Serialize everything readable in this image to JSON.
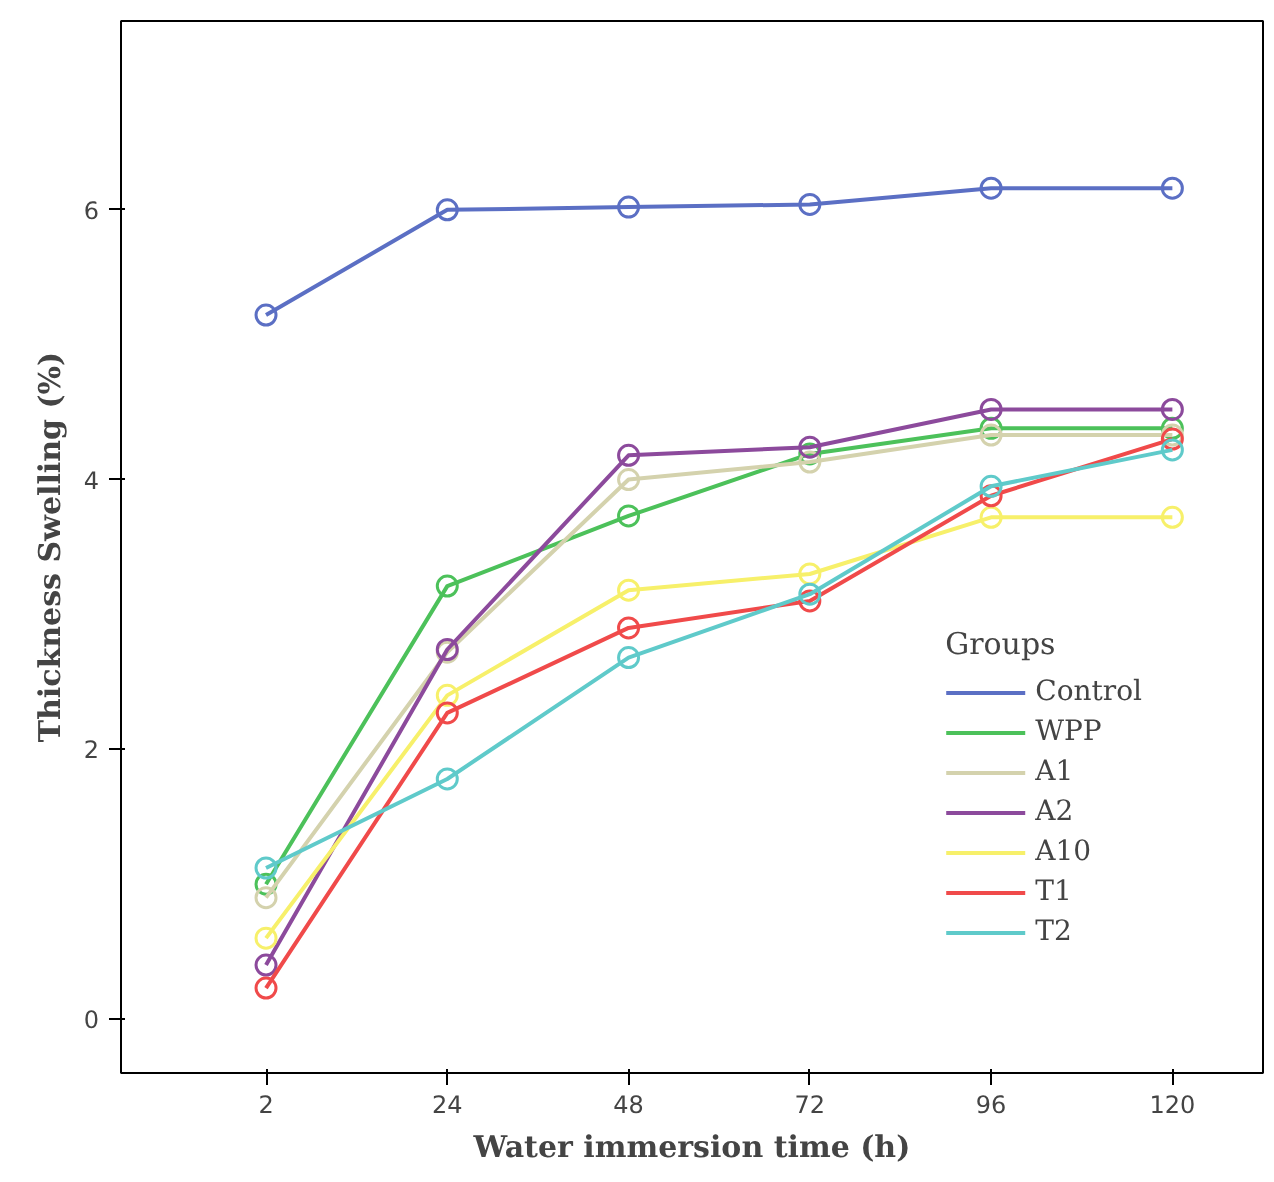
{
  "chart_data": {
    "type": "line",
    "xlabel": "Water immersion time (h)",
    "ylabel": "Thickness Swelling (%)",
    "legend_title": "Groups",
    "categories": [
      "2",
      "24",
      "48",
      "72",
      "96",
      "120"
    ],
    "ylim": [
      -0.4,
      7.4
    ],
    "yticks": [
      0,
      2,
      4,
      6
    ],
    "grid": false,
    "legend": "right",
    "marker": "circle",
    "line_style": "solid",
    "series": [
      {
        "name": "Control",
        "color": "#5b6fc4",
        "values": [
          5.22,
          6.0,
          6.02,
          6.04,
          6.16,
          6.16
        ]
      },
      {
        "name": "WPP",
        "color": "#4cc15a",
        "values": [
          1.0,
          3.21,
          3.73,
          4.19,
          4.38,
          4.38
        ]
      },
      {
        "name": "A1",
        "color": "#d4d2ad",
        "values": [
          0.9,
          2.72,
          4.0,
          4.13,
          4.33,
          4.33
        ]
      },
      {
        "name": "A2",
        "color": "#8c4a9c",
        "values": [
          0.4,
          2.74,
          4.18,
          4.24,
          4.52,
          4.52
        ]
      },
      {
        "name": "A10",
        "color": "#f7f06a",
        "values": [
          0.6,
          2.4,
          3.18,
          3.3,
          3.72,
          3.72
        ]
      },
      {
        "name": "T1",
        "color": "#f04a4a",
        "values": [
          0.23,
          2.27,
          2.9,
          3.1,
          3.88,
          4.3
        ]
      },
      {
        "name": "T2",
        "color": "#5fcaca",
        "values": [
          1.12,
          1.78,
          2.68,
          3.15,
          3.95,
          4.22
        ]
      }
    ]
  }
}
